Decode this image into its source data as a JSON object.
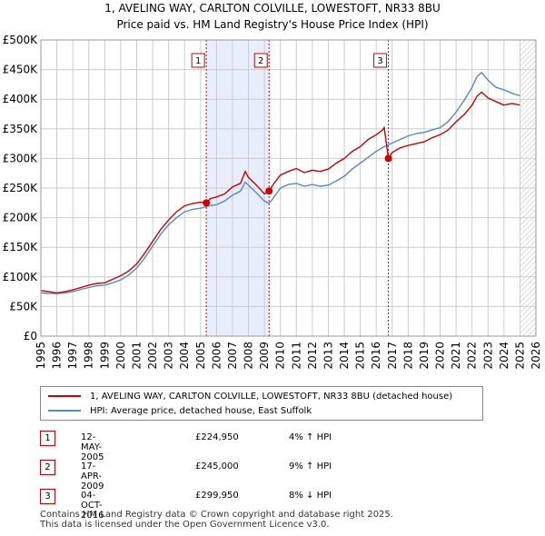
{
  "colors": {
    "property_line": "#cc0000",
    "hpi_line": "#5588cc",
    "shade": "#e8eefb",
    "grid": "#cccccc",
    "marker_line": "#cc0000"
  },
  "chart_data": {
    "type": "line",
    "title": "1, AVELING WAY, CARLTON COLVILLE, LOWESTOFT, NR33 8BU",
    "subtitle": "Price paid vs. HM Land Registry's House Price Index (HPI)",
    "xlim": [
      1995.0,
      2026.0
    ],
    "ylim": [
      0,
      500000
    ],
    "x_ticks": [
      "1995",
      "1996",
      "1997",
      "1998",
      "1999",
      "2000",
      "2001",
      "2002",
      "2003",
      "2004",
      "2005",
      "2006",
      "2007",
      "2008",
      "2009",
      "2010",
      "2011",
      "2012",
      "2013",
      "2014",
      "2015",
      "2016",
      "2017",
      "2018",
      "2019",
      "2020",
      "2021",
      "2022",
      "2023",
      "2024",
      "2025",
      "2026"
    ],
    "y_ticks": [
      {
        "value": 0,
        "label": "£0"
      },
      {
        "value": 50000,
        "label": "£50K"
      },
      {
        "value": 100000,
        "label": "£100K"
      },
      {
        "value": 150000,
        "label": "£150K"
      },
      {
        "value": 200000,
        "label": "£200K"
      },
      {
        "value": 250000,
        "label": "£250K"
      },
      {
        "value": 300000,
        "label": "£300K"
      },
      {
        "value": 350000,
        "label": "£350K"
      },
      {
        "value": 400000,
        "label": "£400K"
      },
      {
        "value": 450000,
        "label": "£450K"
      },
      {
        "value": 500000,
        "label": "£500K"
      }
    ],
    "shaded_ranges": [
      [
        2005.36,
        2009.29
      ],
      [
        2016.76,
        2016.76
      ]
    ],
    "future_hatch_from": 2025.0,
    "series": [
      {
        "name": "1, AVELING WAY, CARLTON COLVILLE, LOWESTOFT, NR33 8BU (detached house)",
        "color": "#cc0000",
        "x": [
          1995.0,
          1995.5,
          1996.0,
          1996.5,
          1997.0,
          1997.5,
          1998.0,
          1998.5,
          1999.0,
          1999.5,
          2000.0,
          2000.5,
          2001.0,
          2001.5,
          2002.0,
          2002.5,
          2003.0,
          2003.5,
          2004.0,
          2004.5,
          2005.0,
          2005.36,
          2005.6,
          2006.0,
          2006.5,
          2007.0,
          2007.5,
          2007.8,
          2008.0,
          2008.5,
          2009.0,
          2009.29,
          2009.6,
          2010.0,
          2010.5,
          2011.0,
          2011.5,
          2012.0,
          2012.5,
          2013.0,
          2013.5,
          2014.0,
          2014.5,
          2015.0,
          2015.5,
          2016.0,
          2016.4,
          2016.5,
          2016.76,
          2017.0,
          2017.5,
          2018.0,
          2018.5,
          2019.0,
          2019.5,
          2020.0,
          2020.5,
          2021.0,
          2021.5,
          2022.0,
          2022.3,
          2022.6,
          2023.0,
          2023.5,
          2024.0,
          2024.5,
          2025.0
        ],
        "values": [
          77000,
          75000,
          73000,
          75000,
          78000,
          82000,
          86000,
          89000,
          90000,
          96000,
          102000,
          110000,
          122000,
          140000,
          160000,
          180000,
          196000,
          210000,
          220000,
          224000,
          226000,
          224950,
          232000,
          235000,
          240000,
          252000,
          258000,
          278000,
          268000,
          255000,
          240000,
          245000,
          258000,
          272000,
          278000,
          283000,
          276000,
          280000,
          278000,
          282000,
          292000,
          300000,
          312000,
          320000,
          332000,
          340000,
          348000,
          352000,
          299950,
          310000,
          318000,
          322000,
          325000,
          328000,
          335000,
          340000,
          348000,
          362000,
          374000,
          390000,
          405000,
          412000,
          402000,
          396000,
          390000,
          393000,
          390000
        ]
      },
      {
        "name": "HPI: Average price, detached house, East Suffolk",
        "color": "#5588cc",
        "x": [
          1995.0,
          1995.5,
          1996.0,
          1996.5,
          1997.0,
          1997.5,
          1998.0,
          1998.5,
          1999.0,
          1999.5,
          2000.0,
          2000.5,
          2001.0,
          2001.5,
          2002.0,
          2002.5,
          2003.0,
          2003.5,
          2004.0,
          2004.5,
          2005.0,
          2005.5,
          2006.0,
          2006.5,
          2007.0,
          2007.5,
          2007.8,
          2008.0,
          2008.5,
          2009.0,
          2009.3,
          2009.6,
          2010.0,
          2010.5,
          2011.0,
          2011.5,
          2012.0,
          2012.5,
          2013.0,
          2013.5,
          2014.0,
          2014.5,
          2015.0,
          2015.5,
          2016.0,
          2016.5,
          2017.0,
          2017.5,
          2018.0,
          2018.5,
          2019.0,
          2019.5,
          2020.0,
          2020.5,
          2021.0,
          2021.5,
          2022.0,
          2022.3,
          2022.6,
          2023.0,
          2023.5,
          2024.0,
          2024.5,
          2025.0
        ],
        "values": [
          73000,
          72000,
          72000,
          73000,
          75000,
          79000,
          82000,
          85000,
          86000,
          90000,
          95000,
          103000,
          115000,
          132000,
          152000,
          172000,
          188000,
          200000,
          210000,
          214000,
          216000,
          220000,
          222000,
          228000,
          238000,
          245000,
          260000,
          255000,
          242000,
          228000,
          224000,
          235000,
          250000,
          256000,
          258000,
          253000,
          256000,
          253000,
          255000,
          262000,
          270000,
          282000,
          292000,
          302000,
          312000,
          320000,
          326000,
          332000,
          338000,
          342000,
          344000,
          348000,
          352000,
          362000,
          378000,
          398000,
          420000,
          438000,
          445000,
          432000,
          420000,
          416000,
          410000,
          406000
        ]
      }
    ],
    "sales": [
      {
        "n": "1",
        "x": 2005.36,
        "value": 224950
      },
      {
        "n": "2",
        "x": 2009.29,
        "value": 245000
      },
      {
        "n": "3",
        "x": 2016.76,
        "value": 299950
      }
    ]
  },
  "legend": {
    "property": "1, AVELING WAY, CARLTON COLVILLE, LOWESTOFT, NR33 8BU (detached house)",
    "hpi": "HPI: Average price, detached house, East Suffolk"
  },
  "transactions": [
    {
      "n": "1",
      "date": "12-MAY-2005",
      "price": "£224,950",
      "hpi": "4% ↑ HPI"
    },
    {
      "n": "2",
      "date": "17-APR-2009",
      "price": "£245,000",
      "hpi": "9% ↑ HPI"
    },
    {
      "n": "3",
      "date": "04-OCT-2016",
      "price": "£299,950",
      "hpi": "8% ↓ HPI"
    }
  ],
  "footer": {
    "line1": "Contains HM Land Registry data © Crown copyright and database right 2025.",
    "line2": "This data is licensed under the Open Government Licence v3.0."
  }
}
